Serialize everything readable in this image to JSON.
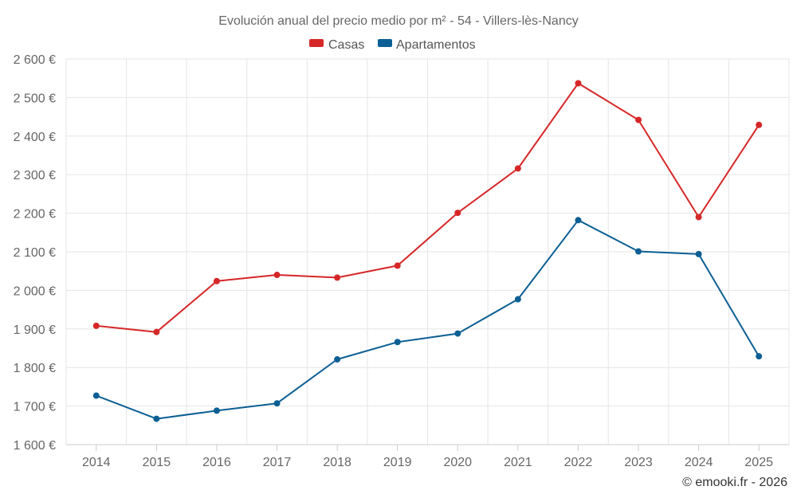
{
  "chart_data": {
    "type": "line",
    "title": "Evolución anual del precio medio por m² - 54 - Villers-lès-Nancy",
    "categories": [
      "2014",
      "2015",
      "2016",
      "2017",
      "2018",
      "2019",
      "2020",
      "2021",
      "2022",
      "2023",
      "2024",
      "2025"
    ],
    "series": [
      {
        "name": "Casas",
        "color": "#d62728",
        "values": [
          1908,
          1892,
          2024,
          2040,
          2033,
          2064,
          2201,
          2316,
          2537,
          2442,
          2190,
          2429
        ]
      },
      {
        "name": "Apartamentos",
        "color": "#0b5f94",
        "values": [
          1727,
          1667,
          1688,
          1707,
          1821,
          1866,
          1888,
          1977,
          2182,
          2101,
          2094,
          1829
        ]
      }
    ],
    "ylim": [
      1600,
      2600
    ],
    "ytick_values": [
      1600,
      1700,
      1800,
      1900,
      2000,
      2100,
      2200,
      2300,
      2400,
      2500,
      2600
    ],
    "ytick_labels": [
      "1 600 €",
      "1 700 €",
      "1 800 €",
      "1 900 €",
      "2 000 €",
      "2 100 €",
      "2 200 €",
      "2 300 €",
      "2 400 €",
      "2 500 €",
      "2 600 €"
    ],
    "xlabel": "",
    "ylabel": "",
    "grid": true,
    "legend_position": "top-center"
  },
  "credit": "© emooki.fr - 2026"
}
